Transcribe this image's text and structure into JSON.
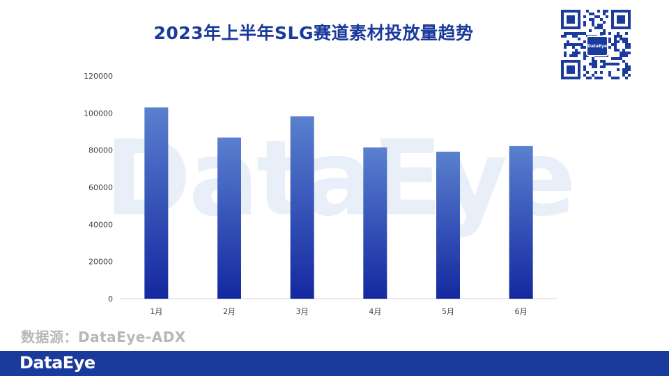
{
  "chart_data": {
    "type": "bar",
    "title": "2023年上半年SLG赛道素材投放量趋势",
    "categories": [
      "1月",
      "2月",
      "3月",
      "4月",
      "5月",
      "6月"
    ],
    "values": [
      103000,
      86800,
      98200,
      81500,
      79200,
      82200
    ],
    "ylim": [
      0,
      120000
    ],
    "yticks": [
      "120000",
      "100000",
      "80000",
      "60000",
      "40000",
      "20000",
      "0"
    ],
    "grid": false,
    "colors": {
      "bar_top": "#5a80cf",
      "bar_bottom": "#1428a0"
    }
  },
  "source": "数据源：DataEye-ADX",
  "watermark": "DataEye",
  "qr_badge": "DataEye",
  "footer": {
    "logo": "DataEye",
    "color": "#1a3a9c"
  }
}
